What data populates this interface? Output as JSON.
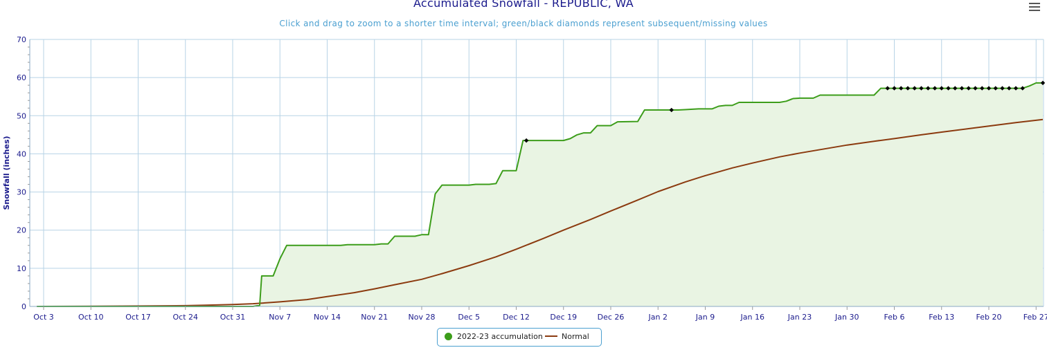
{
  "title": "Accumulated Snowfall - REPUBLIC, WA",
  "subtitle": "Click and drag to zoom to a shorter time interval; green/black diamonds represent subsequent/missing values",
  "menu_icon": "hamburger-menu-icon",
  "legend": {
    "accumulation_label": "2022-23 accumulation",
    "normal_label": "Normal"
  },
  "colors": {
    "accumulation": "#3c9d1a",
    "accumulation_fill": "#e9f4e3",
    "normal": "#8b3a0f",
    "grid": "#b7d3e6",
    "axis_text": "#1a1a8c",
    "diamond": "#000000"
  },
  "chart_data": {
    "type": "line",
    "title": "Accumulated Snowfall - REPUBLIC, WA",
    "ylabel": "Snowfall (inches)",
    "xlabel": "",
    "ylim": [
      0,
      70
    ],
    "yticks": [
      0,
      10,
      20,
      30,
      40,
      50,
      60,
      70
    ],
    "x_axis": "day of season (Oct 2 = day 0)",
    "xlim": [
      0,
      149
    ],
    "xticks": [
      {
        "day": 1,
        "label": "Oct 3"
      },
      {
        "day": 8,
        "label": "Oct 10"
      },
      {
        "day": 15,
        "label": "Oct 17"
      },
      {
        "day": 22,
        "label": "Oct 24"
      },
      {
        "day": 29,
        "label": "Oct 31"
      },
      {
        "day": 36,
        "label": "Nov 7"
      },
      {
        "day": 43,
        "label": "Nov 14"
      },
      {
        "day": 50,
        "label": "Nov 21"
      },
      {
        "day": 57,
        "label": "Nov 28"
      },
      {
        "day": 64,
        "label": "Dec 5"
      },
      {
        "day": 71,
        "label": "Dec 12"
      },
      {
        "day": 78,
        "label": "Dec 19"
      },
      {
        "day": 85,
        "label": "Dec 26"
      },
      {
        "day": 92,
        "label": "Jan 2"
      },
      {
        "day": 99,
        "label": "Jan 9"
      },
      {
        "day": 106,
        "label": "Jan 16"
      },
      {
        "day": 113,
        "label": "Jan 23"
      },
      {
        "day": 120,
        "label": "Jan 30"
      },
      {
        "day": 127,
        "label": "Feb 6"
      },
      {
        "day": 134,
        "label": "Feb 13"
      },
      {
        "day": 141,
        "label": "Feb 20"
      },
      {
        "day": 148,
        "label": "Feb 27"
      }
    ],
    "grid": true,
    "legend_position": "bottom-center",
    "series": [
      {
        "name": "2022-23 accumulation",
        "style": "step-area",
        "points": [
          [
            0,
            0
          ],
          [
            32,
            0
          ],
          [
            33,
            0.3
          ],
          [
            33.3,
            8
          ],
          [
            35,
            8
          ],
          [
            36,
            12.5
          ],
          [
            37,
            16
          ],
          [
            45,
            16
          ],
          [
            46,
            16.2
          ],
          [
            50,
            16.2
          ],
          [
            51,
            16.4
          ],
          [
            52,
            16.4
          ],
          [
            53,
            18.4
          ],
          [
            56,
            18.4
          ],
          [
            57,
            18.8
          ],
          [
            58,
            18.8
          ],
          [
            59,
            29.5
          ],
          [
            60,
            31.8
          ],
          [
            64,
            31.8
          ],
          [
            65,
            32
          ],
          [
            67,
            32
          ],
          [
            68,
            32.2
          ],
          [
            69,
            35.6
          ],
          [
            71,
            35.6
          ],
          [
            72,
            43.5
          ],
          [
            78,
            43.5
          ],
          [
            79,
            44
          ],
          [
            80,
            45
          ],
          [
            81,
            45.5
          ],
          [
            82,
            45.5
          ],
          [
            83,
            47.4
          ],
          [
            85,
            47.4
          ],
          [
            86,
            48.4
          ],
          [
            89,
            48.5
          ],
          [
            90,
            51.5
          ],
          [
            95,
            51.5
          ],
          [
            96,
            51.6
          ],
          [
            98,
            51.8
          ],
          [
            100,
            51.8
          ],
          [
            101,
            52.5
          ],
          [
            102,
            52.7
          ],
          [
            103,
            52.7
          ],
          [
            104,
            53.5
          ],
          [
            110,
            53.5
          ],
          [
            111,
            53.8
          ],
          [
            112,
            54.5
          ],
          [
            113,
            54.6
          ],
          [
            115,
            54.6
          ],
          [
            116,
            55.4
          ],
          [
            124,
            55.4
          ],
          [
            125,
            57.2
          ],
          [
            146,
            57.2
          ],
          [
            147,
            57.8
          ],
          [
            148,
            58.6
          ],
          [
            149,
            58.6
          ]
        ],
        "missing_markers": [
          72.5,
          94,
          126,
          127,
          128,
          129,
          130,
          131,
          132,
          133,
          134,
          135,
          136,
          137,
          138,
          139,
          140,
          141,
          142,
          143,
          144,
          145,
          146,
          149
        ]
      },
      {
        "name": "Normal",
        "style": "line",
        "points": [
          [
            0,
            0
          ],
          [
            15,
            0.1
          ],
          [
            22,
            0.2
          ],
          [
            25,
            0.3
          ],
          [
            29,
            0.5
          ],
          [
            32,
            0.7
          ],
          [
            36,
            1.2
          ],
          [
            40,
            1.8
          ],
          [
            43,
            2.6
          ],
          [
            47,
            3.6
          ],
          [
            50,
            4.6
          ],
          [
            53,
            5.7
          ],
          [
            57,
            7.1
          ],
          [
            60,
            8.6
          ],
          [
            64,
            10.7
          ],
          [
            68,
            13
          ],
          [
            71,
            15
          ],
          [
            75,
            17.8
          ],
          [
            78,
            20
          ],
          [
            82,
            22.8
          ],
          [
            85,
            25
          ],
          [
            89,
            27.9
          ],
          [
            92,
            30.1
          ],
          [
            96,
            32.6
          ],
          [
            99,
            34.3
          ],
          [
            103,
            36.3
          ],
          [
            106,
            37.6
          ],
          [
            110,
            39.2
          ],
          [
            113,
            40.2
          ],
          [
            117,
            41.4
          ],
          [
            120,
            42.3
          ],
          [
            124,
            43.3
          ],
          [
            127,
            44
          ],
          [
            131,
            45
          ],
          [
            134,
            45.7
          ],
          [
            138,
            46.6
          ],
          [
            141,
            47.3
          ],
          [
            145,
            48.2
          ],
          [
            149,
            49
          ]
        ]
      }
    ]
  }
}
